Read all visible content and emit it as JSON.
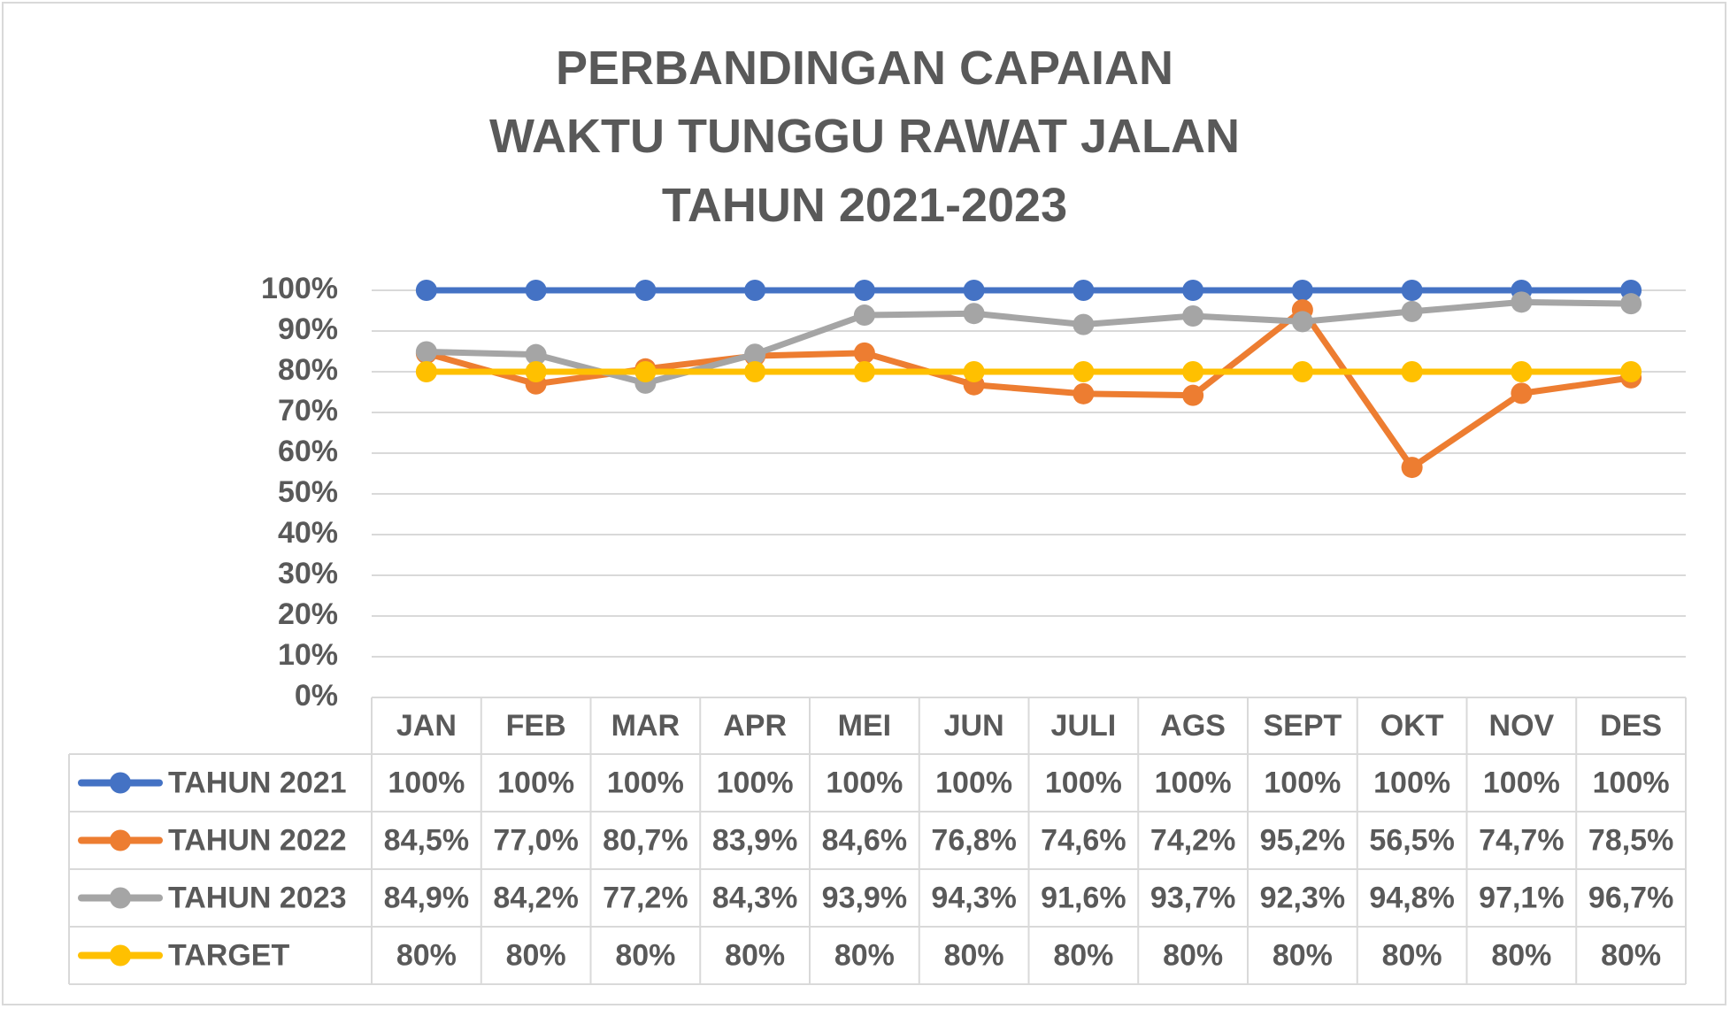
{
  "chart_data": {
    "type": "line",
    "title_lines": [
      "PERBANDINGAN CAPAIAN",
      "WAKTU TUNGGU RAWAT JALAN",
      "TAHUN 2021-2023"
    ],
    "categories": [
      "JAN",
      "FEB",
      "MAR",
      "APR",
      "MEI",
      "JUN",
      "JULI",
      "AGS",
      "SEPT",
      "OKT",
      "NOV",
      "DES"
    ],
    "y_ticks": [
      "0%",
      "10%",
      "20%",
      "30%",
      "40%",
      "50%",
      "60%",
      "70%",
      "80%",
      "90%",
      "100%"
    ],
    "ylim": [
      0,
      100
    ],
    "grid": true,
    "legend": "data-table",
    "series": [
      {
        "name": "TAHUN 2021",
        "color": "#4472c4",
        "values": [
          100,
          100,
          100,
          100,
          100,
          100,
          100,
          100,
          100,
          100,
          100,
          100
        ],
        "labels": [
          "100%",
          "100%",
          "100%",
          "100%",
          "100%",
          "100%",
          "100%",
          "100%",
          "100%",
          "100%",
          "100%",
          "100%"
        ]
      },
      {
        "name": "TAHUN 2022",
        "color": "#ed7d31",
        "values": [
          84.5,
          77.0,
          80.7,
          83.9,
          84.6,
          76.8,
          74.6,
          74.2,
          95.2,
          56.5,
          74.7,
          78.5
        ],
        "labels": [
          "84,5%",
          "77,0%",
          "80,7%",
          "83,9%",
          "84,6%",
          "76,8%",
          "74,6%",
          "74,2%",
          "95,2%",
          "56,5%",
          "74,7%",
          "78,5%"
        ]
      },
      {
        "name": "TAHUN 2023",
        "color": "#a5a5a5",
        "values": [
          84.9,
          84.2,
          77.2,
          84.3,
          93.9,
          94.3,
          91.6,
          93.7,
          92.3,
          94.8,
          97.1,
          96.7
        ],
        "labels": [
          "84,9%",
          "84,2%",
          "77,2%",
          "84,3%",
          "93,9%",
          "94,3%",
          "91,6%",
          "93,7%",
          "92,3%",
          "94,8%",
          "97,1%",
          "96,7%"
        ]
      },
      {
        "name": "TARGET",
        "color": "#ffc000",
        "values": [
          80,
          80,
          80,
          80,
          80,
          80,
          80,
          80,
          80,
          80,
          80,
          80
        ],
        "labels": [
          "80%",
          "80%",
          "80%",
          "80%",
          "80%",
          "80%",
          "80%",
          "80%",
          "80%",
          "80%",
          "80%",
          "80%"
        ]
      }
    ]
  },
  "colors": {
    "text": "#595959",
    "grid": "#d9d9d9",
    "background": "#ffffff"
  }
}
